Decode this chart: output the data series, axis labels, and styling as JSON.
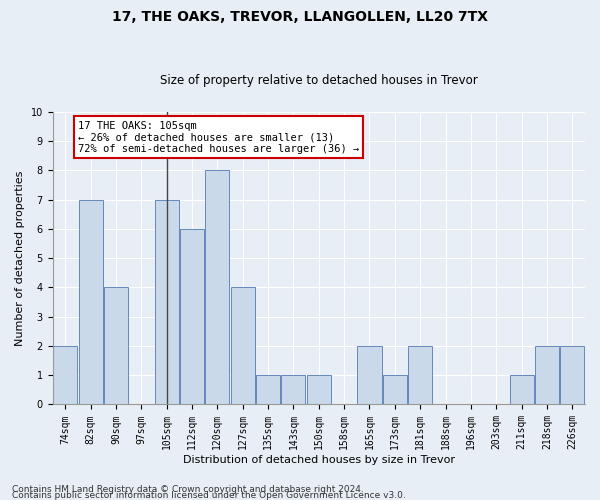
{
  "title1": "17, THE OAKS, TREVOR, LLANGOLLEN, LL20 7TX",
  "title2": "Size of property relative to detached houses in Trevor",
  "xlabel": "Distribution of detached houses by size in Trevor",
  "ylabel": "Number of detached properties",
  "categories": [
    "74sqm",
    "82sqm",
    "90sqm",
    "97sqm",
    "105sqm",
    "112sqm",
    "120sqm",
    "127sqm",
    "135sqm",
    "143sqm",
    "150sqm",
    "158sqm",
    "165sqm",
    "173sqm",
    "181sqm",
    "188sqm",
    "196sqm",
    "203sqm",
    "211sqm",
    "218sqm",
    "226sqm"
  ],
  "values": [
    2,
    7,
    4,
    0,
    7,
    6,
    8,
    4,
    1,
    1,
    1,
    0,
    2,
    1,
    2,
    0,
    0,
    0,
    1,
    2,
    2
  ],
  "bar_color": "#c9d9ea",
  "bar_edge_color": "#6688bb",
  "highlight_index": 4,
  "highlight_line_color": "#444444",
  "annotation_box_text": "17 THE OAKS: 105sqm\n← 26% of detached houses are smaller (13)\n72% of semi-detached houses are larger (36) →",
  "annotation_box_color": "#ffffff",
  "annotation_box_edge_color": "#cc0000",
  "ylim": [
    0,
    10
  ],
  "yticks": [
    0,
    1,
    2,
    3,
    4,
    5,
    6,
    7,
    8,
    9,
    10
  ],
  "footer1": "Contains HM Land Registry data © Crown copyright and database right 2024.",
  "footer2": "Contains public sector information licensed under the Open Government Licence v3.0.",
  "bg_color": "#e8eef5",
  "plot_bg_color": "#e8eef5",
  "grid_color": "#ffffff",
  "title1_fontsize": 10,
  "title2_fontsize": 8.5,
  "annotation_fontsize": 7.5,
  "footer_fontsize": 6.5,
  "axis_label_fontsize": 8,
  "tick_fontsize": 7
}
